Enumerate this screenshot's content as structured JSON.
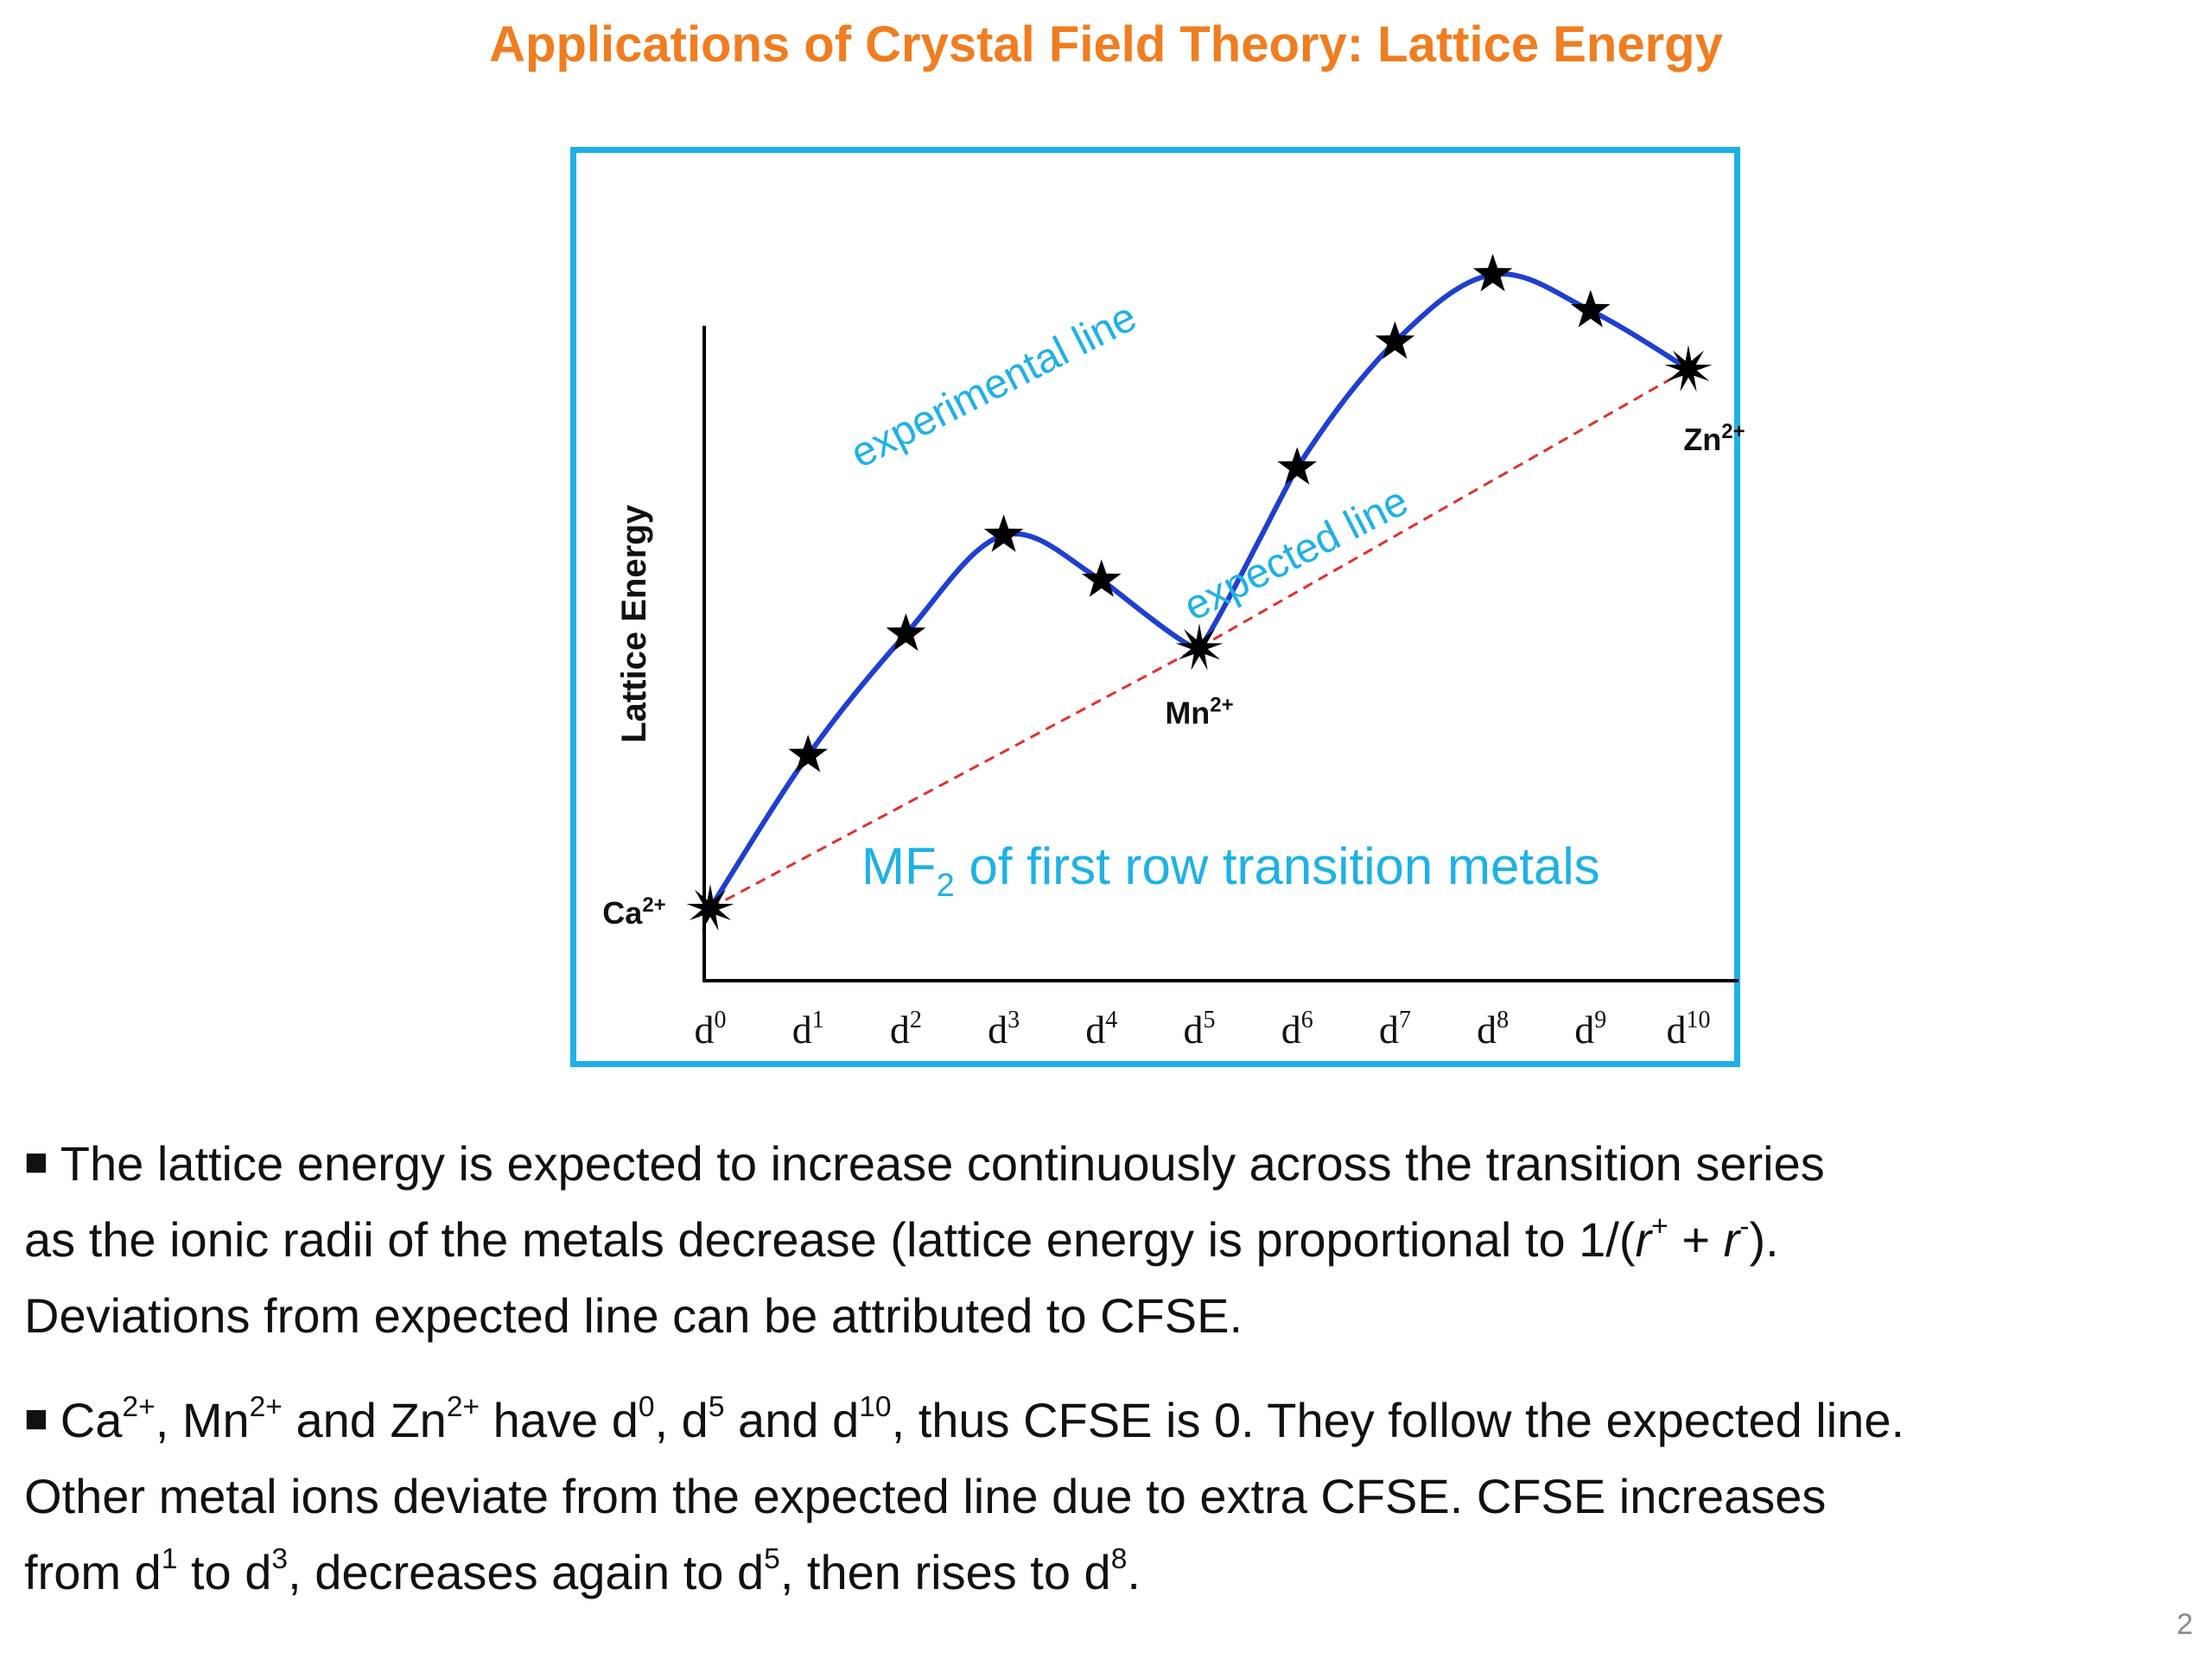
{
  "slide": {
    "title": "Applications of Crystal Field Theory: Lattice Energy",
    "page_number": "2"
  },
  "colors": {
    "title": "#f07d20",
    "frame": "#1eb1e6",
    "experimental_line": "#1f3fd0",
    "expected_line": "#e03030",
    "annotation": "#1eb1e6"
  },
  "chart_data": {
    "type": "line",
    "ylabel": "Lattice Energy",
    "xlabel": "",
    "caption_main": "MF",
    "caption_sub": "2",
    "caption_rest": " of first row transition metals",
    "x_ticks": [
      {
        "base": "d",
        "sup": "0"
      },
      {
        "base": "d",
        "sup": "1"
      },
      {
        "base": "d",
        "sup": "2"
      },
      {
        "base": "d",
        "sup": "3"
      },
      {
        "base": "d",
        "sup": "4"
      },
      {
        "base": "d",
        "sup": "5"
      },
      {
        "base": "d",
        "sup": "6"
      },
      {
        "base": "d",
        "sup": "7"
      },
      {
        "base": "d",
        "sup": "8"
      },
      {
        "base": "d",
        "sup": "9"
      },
      {
        "base": "d",
        "sup": "10"
      }
    ],
    "y_axis_values_shown": false,
    "series": [
      {
        "name": "experimental line",
        "x": [
          0,
          1,
          2,
          3,
          4,
          5,
          6,
          7,
          8,
          9,
          10
        ],
        "values": [
          1.0,
          2.7,
          4.05,
          5.15,
          4.65,
          3.9,
          5.9,
          7.3,
          8.05,
          7.65,
          7.0
        ]
      },
      {
        "name": "expected line",
        "x": [
          0,
          5,
          10
        ],
        "values": [
          1.0,
          3.9,
          7.0
        ]
      }
    ],
    "ion_labels": [
      {
        "base": "Ca",
        "sup": "2+",
        "x": 0
      },
      {
        "base": "Mn",
        "sup": "2+",
        "x": 5
      },
      {
        "base": "Zn",
        "sup": "2+",
        "x": 10
      }
    ]
  },
  "bullets": {
    "b1": {
      "l1": "The lattice energy is expected to increase continuously across the transition series",
      "l2a": "as  the ionic radii of the metals decrease (lattice energy is proportional to 1/(",
      "r1": "r",
      "r1sup": "+",
      "plus": " + ",
      "r2": "r",
      "r2sup": "-",
      "l2b": ").",
      "l3": "Deviations from expected line can be attributed to CFSE."
    },
    "b2": {
      "ca": "Ca",
      "ca_sup": "2+",
      "sep1": ", ",
      "mn": "Mn",
      "mn_sup": "2+",
      "and1": " and ",
      "zn": "Zn",
      "zn_sup": "2+",
      "have": " have ",
      "d0": "d",
      "d0_sup": "0",
      "sep2": ", ",
      "d5": "d",
      "d5_sup": "5",
      "and2": " and ",
      "d10": "d",
      "d10_sup": "10",
      "rest1": ", thus CFSE is 0. They follow the expected line.",
      "l2": "Other metal ions deviate from the expected line due to extra CFSE. CFSE increases",
      "l3a": "from ",
      "da": "d",
      "da_sup": "1",
      "to1": " to ",
      "db": "d",
      "db_sup": "3",
      "mid": ", decreases again to ",
      "dc": "d",
      "dc_sup": "5",
      "mid2": ", then rises to ",
      "dd": "d",
      "dd_sup": "8",
      "end": "."
    }
  }
}
